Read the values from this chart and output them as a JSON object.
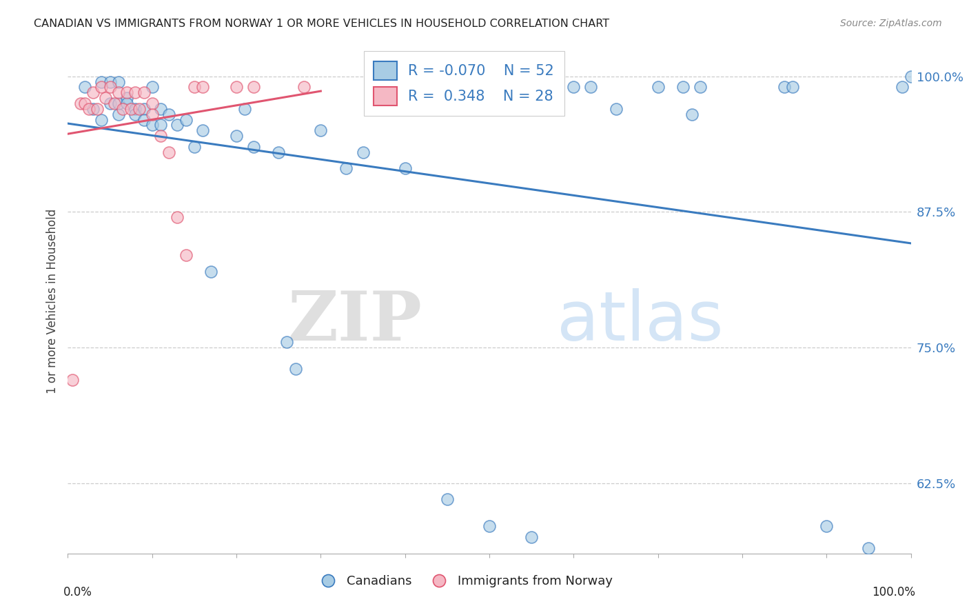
{
  "title": "CANADIAN VS IMMIGRANTS FROM NORWAY 1 OR MORE VEHICLES IN HOUSEHOLD CORRELATION CHART",
  "source": "Source: ZipAtlas.com",
  "ylabel": "1 or more Vehicles in Household",
  "ytick_labels": [
    "100.0%",
    "87.5%",
    "75.0%",
    "62.5%"
  ],
  "ytick_values": [
    1.0,
    0.875,
    0.75,
    0.625
  ],
  "xlim": [
    0.0,
    1.0
  ],
  "ylim": [
    0.56,
    1.025
  ],
  "legend_blue_R": "-0.070",
  "legend_blue_N": "52",
  "legend_pink_R": "0.348",
  "legend_pink_N": "28",
  "blue_color": "#a8cce4",
  "pink_color": "#f5b8c4",
  "trendline_blue": "#3a7bbf",
  "trendline_pink": "#e05570",
  "watermark_zip": "ZIP",
  "watermark_atlas": "atlas",
  "blue_x": [
    0.02,
    0.03,
    0.04,
    0.04,
    0.05,
    0.05,
    0.06,
    0.06,
    0.06,
    0.07,
    0.07,
    0.08,
    0.08,
    0.09,
    0.09,
    0.1,
    0.1,
    0.11,
    0.11,
    0.12,
    0.13,
    0.14,
    0.15,
    0.16,
    0.17,
    0.2,
    0.21,
    0.22,
    0.25,
    0.26,
    0.27,
    0.3,
    0.33,
    0.42,
    0.5,
    0.55,
    0.6,
    0.62,
    0.65,
    0.7,
    0.73,
    0.74,
    0.75,
    0.85,
    0.86,
    0.9,
    0.95,
    0.99,
    1.0,
    0.35,
    0.4,
    0.45
  ],
  "blue_y": [
    0.99,
    0.97,
    0.995,
    0.96,
    0.995,
    0.975,
    0.995,
    0.965,
    0.975,
    0.98,
    0.975,
    0.97,
    0.965,
    0.97,
    0.96,
    0.99,
    0.955,
    0.97,
    0.955,
    0.965,
    0.955,
    0.96,
    0.935,
    0.95,
    0.82,
    0.945,
    0.97,
    0.935,
    0.93,
    0.755,
    0.73,
    0.95,
    0.915,
    0.99,
    0.585,
    0.575,
    0.99,
    0.99,
    0.97,
    0.99,
    0.99,
    0.965,
    0.99,
    0.99,
    0.99,
    0.585,
    0.565,
    0.99,
    1.0,
    0.93,
    0.915,
    0.61
  ],
  "pink_x": [
    0.005,
    0.015,
    0.02,
    0.025,
    0.03,
    0.035,
    0.04,
    0.045,
    0.05,
    0.055,
    0.06,
    0.065,
    0.07,
    0.075,
    0.08,
    0.085,
    0.09,
    0.1,
    0.1,
    0.11,
    0.12,
    0.13,
    0.14,
    0.15,
    0.16,
    0.2,
    0.22,
    0.28
  ],
  "pink_y": [
    0.72,
    0.975,
    0.975,
    0.97,
    0.985,
    0.97,
    0.99,
    0.98,
    0.99,
    0.975,
    0.985,
    0.97,
    0.985,
    0.97,
    0.985,
    0.97,
    0.985,
    0.975,
    0.965,
    0.945,
    0.93,
    0.87,
    0.835,
    0.99,
    0.99,
    0.99,
    0.99,
    0.99
  ]
}
